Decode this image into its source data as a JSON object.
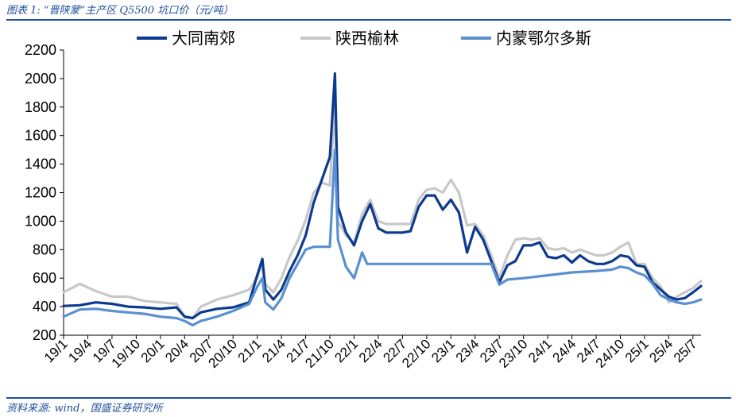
{
  "header": {
    "title": "图表 1: “晋陕蒙”主产区 Q5500 坑口价（元/吨）"
  },
  "footer": {
    "source": "资料来源: wind，国盛证券研究所"
  },
  "colors": {
    "accent": "#1f4e9c",
    "series": [
      "#0b3a8f",
      "#c8c8c8",
      "#5a8fd0"
    ]
  },
  "chart_data": {
    "type": "line",
    "title": "",
    "xlabel": "",
    "ylabel": "",
    "ylim": [
      200,
      2200
    ],
    "yticks": [
      200,
      400,
      600,
      800,
      1000,
      1200,
      1400,
      1600,
      1800,
      2000,
      2200
    ],
    "xlim": [
      "2019-01",
      "2025-08"
    ],
    "xticks": [
      "19/1",
      "19/4",
      "19/7",
      "19/10",
      "20/1",
      "20/4",
      "20/7",
      "20/10",
      "21/1",
      "21/4",
      "21/7",
      "21/10",
      "22/1",
      "22/4",
      "22/7",
      "22/10",
      "23/1",
      "23/4",
      "23/7",
      "23/10",
      "24/1",
      "24/4",
      "24/7",
      "24/10",
      "25/1",
      "25/4",
      "25/7"
    ],
    "legend_position": "top",
    "grid": false,
    "series": [
      {
        "name": "大同南郊",
        "points": [
          [
            "2019-01",
            405
          ],
          [
            "2019-03",
            410
          ],
          [
            "2019-05",
            430
          ],
          [
            "2019-07",
            420
          ],
          [
            "2019-09",
            400
          ],
          [
            "2019-11",
            395
          ],
          [
            "2020-01",
            385
          ],
          [
            "2020-03",
            395
          ],
          [
            "2020-04",
            330
          ],
          [
            "2020-05",
            320
          ],
          [
            "2020-06",
            360
          ],
          [
            "2020-08",
            385
          ],
          [
            "2020-10",
            395
          ],
          [
            "2020-12",
            430
          ],
          [
            "2021-01",
            620
          ],
          [
            "2021-01-20",
            735
          ],
          [
            "2021-02",
            520
          ],
          [
            "2021-03",
            450
          ],
          [
            "2021-04",
            520
          ],
          [
            "2021-05",
            650
          ],
          [
            "2021-06",
            760
          ],
          [
            "2021-07",
            900
          ],
          [
            "2021-08",
            1130
          ],
          [
            "2021-09",
            1290
          ],
          [
            "2021-10",
            1450
          ],
          [
            "2021-10-20",
            2035
          ],
          [
            "2021-11",
            1100
          ],
          [
            "2021-12",
            920
          ],
          [
            "2022-01",
            830
          ],
          [
            "2022-02",
            1000
          ],
          [
            "2022-03",
            1120
          ],
          [
            "2022-04",
            950
          ],
          [
            "2022-05",
            920
          ],
          [
            "2022-07",
            920
          ],
          [
            "2022-08",
            930
          ],
          [
            "2022-09",
            1100
          ],
          [
            "2022-10",
            1180
          ],
          [
            "2022-11",
            1180
          ],
          [
            "2022-12",
            1080
          ],
          [
            "2023-01",
            1150
          ],
          [
            "2023-02",
            1060
          ],
          [
            "2023-03",
            780
          ],
          [
            "2023-04",
            960
          ],
          [
            "2023-05",
            870
          ],
          [
            "2023-06",
            720
          ],
          [
            "2023-07",
            570
          ],
          [
            "2023-08",
            690
          ],
          [
            "2023-09",
            720
          ],
          [
            "2023-10",
            830
          ],
          [
            "2023-11",
            830
          ],
          [
            "2023-12",
            850
          ],
          [
            "2024-01",
            750
          ],
          [
            "2024-02",
            740
          ],
          [
            "2024-03",
            760
          ],
          [
            "2024-04",
            710
          ],
          [
            "2024-05",
            760
          ],
          [
            "2024-06",
            720
          ],
          [
            "2024-07",
            700
          ],
          [
            "2024-08",
            700
          ],
          [
            "2024-09",
            720
          ],
          [
            "2024-10",
            760
          ],
          [
            "2024-11",
            750
          ],
          [
            "2024-12",
            690
          ],
          [
            "2025-01",
            680
          ],
          [
            "2025-02",
            570
          ],
          [
            "2025-03",
            520
          ],
          [
            "2025-04",
            470
          ],
          [
            "2025-05",
            450
          ],
          [
            "2025-06",
            460
          ],
          [
            "2025-07",
            500
          ],
          [
            "2025-08",
            545
          ]
        ]
      },
      {
        "name": "陕西榆林",
        "points": [
          [
            "2019-01",
            500
          ],
          [
            "2019-03",
            560
          ],
          [
            "2019-05",
            510
          ],
          [
            "2019-07",
            470
          ],
          [
            "2019-09",
            470
          ],
          [
            "2019-11",
            440
          ],
          [
            "2020-01",
            430
          ],
          [
            "2020-03",
            420
          ],
          [
            "2020-04",
            330
          ],
          [
            "2020-05",
            320
          ],
          [
            "2020-06",
            400
          ],
          [
            "2020-08",
            450
          ],
          [
            "2020-10",
            480
          ],
          [
            "2020-12",
            520
          ],
          [
            "2021-01",
            600
          ],
          [
            "2021-01-20",
            700
          ],
          [
            "2021-02",
            560
          ],
          [
            "2021-03",
            500
          ],
          [
            "2021-04",
            600
          ],
          [
            "2021-05",
            750
          ],
          [
            "2021-06",
            860
          ],
          [
            "2021-07",
            1010
          ],
          [
            "2021-08",
            1200
          ],
          [
            "2021-09",
            1270
          ],
          [
            "2021-10",
            1250
          ],
          [
            "2021-10-20",
            1830
          ],
          [
            "2021-11",
            1000
          ],
          [
            "2021-12",
            900
          ],
          [
            "2022-01",
            850
          ],
          [
            "2022-02",
            1050
          ],
          [
            "2022-03",
            1150
          ],
          [
            "2022-04",
            1000
          ],
          [
            "2022-05",
            980
          ],
          [
            "2022-07",
            980
          ],
          [
            "2022-08",
            980
          ],
          [
            "2022-09",
            1150
          ],
          [
            "2022-10",
            1220
          ],
          [
            "2022-11",
            1230
          ],
          [
            "2022-12",
            1200
          ],
          [
            "2023-01",
            1290
          ],
          [
            "2023-02",
            1200
          ],
          [
            "2023-03",
            970
          ],
          [
            "2023-04",
            980
          ],
          [
            "2023-05",
            900
          ],
          [
            "2023-06",
            760
          ],
          [
            "2023-07",
            600
          ],
          [
            "2023-08",
            760
          ],
          [
            "2023-09",
            870
          ],
          [
            "2023-10",
            880
          ],
          [
            "2023-11",
            870
          ],
          [
            "2023-12",
            880
          ],
          [
            "2024-01",
            810
          ],
          [
            "2024-02",
            800
          ],
          [
            "2024-03",
            810
          ],
          [
            "2024-04",
            780
          ],
          [
            "2024-05",
            800
          ],
          [
            "2024-06",
            780
          ],
          [
            "2024-07",
            760
          ],
          [
            "2024-08",
            760
          ],
          [
            "2024-09",
            780
          ],
          [
            "2024-10",
            820
          ],
          [
            "2024-11",
            850
          ],
          [
            "2024-12",
            700
          ],
          [
            "2025-01",
            700
          ],
          [
            "2025-02",
            600
          ],
          [
            "2025-03",
            540
          ],
          [
            "2025-04",
            430
          ],
          [
            "2025-05",
            470
          ],
          [
            "2025-06",
            500
          ],
          [
            "2025-07",
            530
          ],
          [
            "2025-08",
            580
          ]
        ]
      },
      {
        "name": "内蒙鄂尔多斯",
        "points": [
          [
            "2019-01",
            330
          ],
          [
            "2019-03",
            380
          ],
          [
            "2019-05",
            385
          ],
          [
            "2019-07",
            370
          ],
          [
            "2019-09",
            360
          ],
          [
            "2019-11",
            350
          ],
          [
            "2020-01",
            330
          ],
          [
            "2020-03",
            320
          ],
          [
            "2020-04",
            300
          ],
          [
            "2020-05",
            270
          ],
          [
            "2020-06",
            300
          ],
          [
            "2020-08",
            330
          ],
          [
            "2020-10",
            370
          ],
          [
            "2020-12",
            420
          ],
          [
            "2021-01",
            540
          ],
          [
            "2021-01-20",
            600
          ],
          [
            "2021-02",
            430
          ],
          [
            "2021-03",
            380
          ],
          [
            "2021-04",
            460
          ],
          [
            "2021-05",
            600
          ],
          [
            "2021-06",
            700
          ],
          [
            "2021-07",
            800
          ],
          [
            "2021-08",
            820
          ],
          [
            "2021-09",
            820
          ],
          [
            "2021-10",
            820
          ],
          [
            "2021-10-20",
            1500
          ],
          [
            "2021-11",
            870
          ],
          [
            "2021-12",
            680
          ],
          [
            "2022-01",
            600
          ],
          [
            "2022-02",
            780
          ],
          [
            "2022-02-20",
            700
          ],
          [
            "2022-04",
            700
          ],
          [
            "2022-07",
            700
          ],
          [
            "2022-10",
            700
          ],
          [
            "2023-01",
            700
          ],
          [
            "2023-04",
            700
          ],
          [
            "2023-06",
            700
          ],
          [
            "2023-07",
            555
          ],
          [
            "2023-08",
            590
          ],
          [
            "2023-10",
            600
          ],
          [
            "2024-01",
            620
          ],
          [
            "2024-04",
            640
          ],
          [
            "2024-07",
            650
          ],
          [
            "2024-09",
            660
          ],
          [
            "2024-10",
            680
          ],
          [
            "2024-11",
            670
          ],
          [
            "2024-12",
            640
          ],
          [
            "2025-01",
            620
          ],
          [
            "2025-02",
            560
          ],
          [
            "2025-03",
            480
          ],
          [
            "2025-04",
            450
          ],
          [
            "2025-05",
            430
          ],
          [
            "2025-06",
            420
          ],
          [
            "2025-07",
            430
          ],
          [
            "2025-08",
            450
          ]
        ]
      }
    ]
  }
}
